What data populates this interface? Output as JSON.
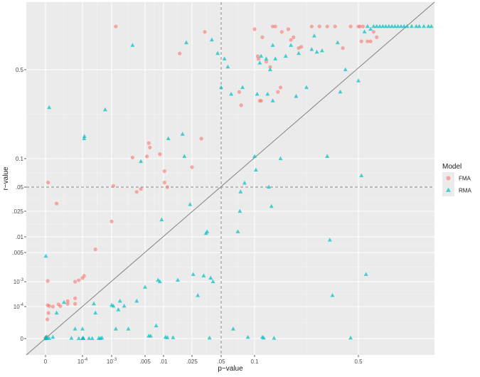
{
  "chart_data": {
    "type": "scatter",
    "x_axis": {
      "label": "p−value",
      "scale": "nonlinear",
      "ticks": [
        {
          "value": 0,
          "label": "0"
        },
        {
          "value": 0.0001,
          "label": "10^-4"
        },
        {
          "value": 0.001,
          "label": "10^-3"
        },
        {
          "value": 0.005,
          "label": ".005"
        },
        {
          "value": 0.01,
          "label": ".01"
        },
        {
          "value": 0.025,
          "label": ".025"
        },
        {
          "value": 0.05,
          "label": ".05"
        },
        {
          "value": 0.1,
          "label": "0.1"
        },
        {
          "value": 0.5,
          "label": "0.5"
        }
      ]
    },
    "y_axis": {
      "label": "r−value",
      "scale": "nonlinear",
      "ticks": [
        {
          "value": 0,
          "label": "0"
        },
        {
          "value": 0.0001,
          "label": "10^-4"
        },
        {
          "value": 0.001,
          "label": "10^-3"
        },
        {
          "value": 0.005,
          "label": ".005"
        },
        {
          "value": 0.01,
          "label": ".01"
        },
        {
          "value": 0.025,
          "label": ".025"
        },
        {
          "value": 0.05,
          "label": ".05"
        },
        {
          "value": 0.1,
          "label": "0.1"
        },
        {
          "value": 0.5,
          "label": "0.5"
        }
      ]
    },
    "reference_lines": {
      "diagonal": "y = x",
      "vertical_at_x": 0.05,
      "horizontal_at_y": 0.05
    },
    "grid": true,
    "legend": {
      "title": "Model",
      "placement": "right",
      "entries": [
        {
          "name": "FMA",
          "shape": "circle",
          "color": "#F8766D"
        },
        {
          "name": "RMA",
          "shape": "triangle",
          "color": "#00BFC4"
        }
      ]
    },
    "series": [
      {
        "name": "FMA",
        "shape": "circle",
        "color": "#F8766D",
        "points": [
          [
            3e-07,
            2e-07
          ],
          [
            5e-07,
            4e-07
          ],
          [
            8e-07,
            1e-06
          ],
          [
            1e-06,
            1.2e-06
          ],
          [
            1.2e-06,
            5e-07
          ],
          [
            6e-07,
            1.5e-06
          ],
          [
            2e-06,
            3e-06
          ],
          [
            2.5e-06,
            2e-06
          ],
          [
            1.5e-06,
            4e-06
          ],
          [
            3e-06,
            5e-06
          ],
          [
            5e-06,
            6e-05
          ],
          [
            8e-06,
            8e-05
          ],
          [
            1e-05,
            0.00012
          ],
          [
            6e-06,
            0.00015
          ],
          [
            6e-06,
            0.0011
          ],
          [
            2e-05,
            0.0001
          ],
          [
            3.5e-05,
            0.00018
          ],
          [
            4e-05,
            0.00012
          ],
          [
            6e-05,
            0.0002
          ],
          [
            8e-05,
            0.0004
          ],
          [
            8e-05,
            0.001
          ],
          [
            9e-05,
            0.0012
          ],
          [
            0.0001,
            0.0015
          ],
          [
            0.00015,
            0.0018
          ],
          [
            0.0005,
            0.006
          ],
          [
            8e-05,
            0.0002
          ],
          [
            6e-05,
            0.0003
          ],
          [
            7e-06,
            0.058
          ],
          [
            3e-05,
            0.033
          ],
          [
            0.001,
            0.019
          ],
          [
            0.0012,
            0.052
          ],
          [
            0.0015,
            0.82
          ],
          [
            0.0035,
            0.105
          ],
          [
            0.004,
            0.045
          ],
          [
            0.0045,
            0.048
          ],
          [
            0.0055,
            0.11
          ],
          [
            0.006,
            0.17
          ],
          [
            0.0063,
            0.15
          ],
          [
            0.009,
            0.12
          ],
          [
            0.0105,
            0.058
          ],
          [
            0.0105,
            0.078
          ],
          [
            0.012,
            0.05
          ],
          [
            0.0185,
            0.62
          ],
          [
            0.025,
            0.085
          ],
          [
            0.033,
            0.19
          ],
          [
            0.036,
            0.78
          ],
          [
            0.077,
            0.4
          ],
          [
            0.08,
            0.34
          ],
          [
            0.1,
            0.8
          ],
          [
            0.112,
            0.6
          ],
          [
            0.115,
            0.58
          ],
          [
            0.12,
            0.36
          ],
          [
            0.125,
            0.36
          ],
          [
            0.13,
            0.74
          ],
          [
            0.145,
            0.56
          ],
          [
            0.16,
            0.52
          ],
          [
            0.17,
            0.82
          ],
          [
            0.18,
            0.82
          ],
          [
            0.19,
            0.4
          ],
          [
            0.2,
            0.42
          ],
          [
            0.205,
            0.78
          ],
          [
            0.23,
            0.8
          ],
          [
            0.24,
            0.72
          ],
          [
            0.25,
            0.74
          ],
          [
            0.27,
            0.66
          ],
          [
            0.28,
            0.67
          ],
          [
            0.32,
            0.82
          ],
          [
            0.35,
            0.82
          ],
          [
            0.38,
            0.82
          ],
          [
            0.41,
            0.82
          ],
          [
            0.44,
            0.66
          ],
          [
            0.47,
            0.82
          ],
          [
            0.5,
            0.82
          ],
          [
            0.51,
            0.82
          ],
          [
            0.53,
            0.82
          ],
          [
            0.56,
            0.71
          ],
          [
            0.58,
            0.71
          ],
          [
            0.6,
            0.78
          ],
          [
            0.62,
            0.74
          ],
          [
            0.52,
            0.71
          ]
        ]
      },
      {
        "name": "RMA",
        "shape": "triangle",
        "color": "#00BFC4",
        "points": [
          [
            5e-07,
            2e-07
          ],
          [
            1e-06,
            4e-07
          ],
          [
            1.5e-06,
            8e-07
          ],
          [
            2e-06,
            1e-06
          ],
          [
            8e-07,
            2e-06
          ],
          [
            1e-06,
            3e-06
          ],
          [
            2.5e-06,
            5e-06
          ],
          [
            3e-06,
            1.5e-06
          ],
          [
            1e-06,
            0.0045
          ],
          [
            1e-05,
            0.33
          ],
          [
            1e-05,
            5e-07
          ],
          [
            2e-05,
            4e-06
          ],
          [
            3e-05,
            8e-05
          ],
          [
            5e-05,
            0.00025
          ],
          [
            7e-05,
            1e-06
          ],
          [
            9e-05,
            2e-07
          ],
          [
            0.0001,
            3e-07
          ],
          [
            0.00011,
            8e-07
          ],
          [
            0.00012,
            4e-07
          ],
          [
            0.00013,
            6e-07
          ],
          [
            8e-05,
            3e-05
          ],
          [
            0.0001,
            3e-05
          ],
          [
            0.00015,
            0.19
          ],
          [
            0.00016,
            0.2
          ],
          [
            0.0003,
            6e-07
          ],
          [
            0.0004,
            2e-07
          ],
          [
            0.00045,
            0.0002
          ],
          [
            0.0005,
            8e-05
          ],
          [
            0.0006,
            8e-07
          ],
          [
            0.00065,
            5e-07
          ],
          [
            0.0007,
            2e-06
          ],
          [
            0.0008,
            0.32
          ],
          [
            0.001,
            0.00015
          ],
          [
            0.0012,
            0.00012
          ],
          [
            0.0015,
            3e-05
          ],
          [
            0.0018,
            9e-05
          ],
          [
            0.002,
            0.0003
          ],
          [
            0.0025,
            0.00012
          ],
          [
            0.003,
            3e-05
          ],
          [
            0.0035,
            0.68
          ],
          [
            0.004,
            0.0003
          ],
          [
            0.0045,
            0.095
          ],
          [
            0.005,
            0.0008
          ],
          [
            0.006,
            8e-06
          ],
          [
            0.0065,
            8e-06
          ],
          [
            0.008,
            4e-05
          ],
          [
            0.0085,
            0.0012
          ],
          [
            0.009,
            0.001
          ],
          [
            0.0095,
            0.02
          ],
          [
            0.011,
            4e-06
          ],
          [
            0.012,
            3e-06
          ],
          [
            0.0125,
            0.19
          ],
          [
            0.015,
            3e-06
          ],
          [
            0.0175,
            0.0012
          ],
          [
            0.02,
            0.21
          ],
          [
            0.021,
            0.11
          ],
          [
            0.022,
            0.7
          ],
          [
            0.024,
            0.032
          ],
          [
            0.026,
            0.002
          ],
          [
            0.03,
            0.0005
          ],
          [
            0.035,
            0.0018
          ],
          [
            0.037,
            0.012
          ],
          [
            0.038,
            0.013
          ],
          [
            0.04,
            2e-06
          ],
          [
            0.041,
            0.0015
          ],
          [
            0.042,
            0.72
          ],
          [
            0.043,
            0.001
          ],
          [
            0.047,
            0.62
          ],
          [
            0.05,
            0.42
          ],
          [
            0.055,
            0.58
          ],
          [
            0.06,
            0.52
          ],
          [
            0.065,
            0.39
          ],
          [
            0.068,
            3e-05
          ],
          [
            0.075,
            0.013
          ],
          [
            0.078,
            0.025
          ],
          [
            0.079,
            0.045
          ],
          [
            0.082,
            0.42
          ],
          [
            0.085,
            0.057
          ],
          [
            0.09,
            4e-06
          ],
          [
            0.1,
            0.11
          ],
          [
            0.105,
            0.08
          ],
          [
            0.11,
            0.39
          ],
          [
            0.12,
            0.55
          ],
          [
            0.125,
            0.6
          ],
          [
            0.13,
            4e-06
          ],
          [
            0.135,
            2e-06
          ],
          [
            0.145,
            0.58
          ],
          [
            0.15,
            0.39
          ],
          [
            0.155,
            0.05
          ],
          [
            0.16,
            0.5
          ],
          [
            0.165,
            0.03
          ],
          [
            0.17,
            0.36
          ],
          [
            0.17,
            0.68
          ],
          [
            0.175,
            1e-06
          ],
          [
            0.18,
            0.58
          ],
          [
            0.2,
            0.1
          ],
          [
            0.22,
            0.6
          ],
          [
            0.24,
            0.68
          ],
          [
            0.26,
            0.38
          ],
          [
            0.27,
            0.62
          ],
          [
            0.3,
            0.42
          ],
          [
            0.32,
            0.65
          ],
          [
            0.33,
            0.75
          ],
          [
            0.34,
            0.63
          ],
          [
            0.36,
            0.64
          ],
          [
            0.38,
            0.11
          ],
          [
            0.39,
            0.009
          ],
          [
            0.4,
            0.0005
          ],
          [
            0.42,
            0.7
          ],
          [
            0.43,
            0.4
          ],
          [
            0.45,
            0.5
          ],
          [
            0.47,
            2e-06
          ],
          [
            0.5,
            0.45
          ],
          [
            0.52,
            0.07
          ],
          [
            0.55,
            0.002
          ],
          [
            0.56,
            0.82
          ],
          [
            0.6,
            0.82
          ],
          [
            0.62,
            0.82
          ],
          [
            0.64,
            0.82
          ],
          [
            0.66,
            0.82
          ],
          [
            0.68,
            0.82
          ],
          [
            0.7,
            0.82
          ],
          [
            0.72,
            0.82
          ],
          [
            0.74,
            0.82
          ],
          [
            0.76,
            0.82
          ],
          [
            0.78,
            0.82
          ],
          [
            0.8,
            0.82
          ],
          [
            0.82,
            0.82
          ],
          [
            0.85,
            0.82
          ],
          [
            0.88,
            0.82
          ],
          [
            0.9,
            0.82
          ],
          [
            0.93,
            0.82
          ],
          [
            0.96,
            0.82
          ],
          [
            0.98,
            0.82
          ],
          [
            0.54,
            0.78
          ],
          [
            0.58,
            0.8
          ]
        ]
      }
    ]
  }
}
